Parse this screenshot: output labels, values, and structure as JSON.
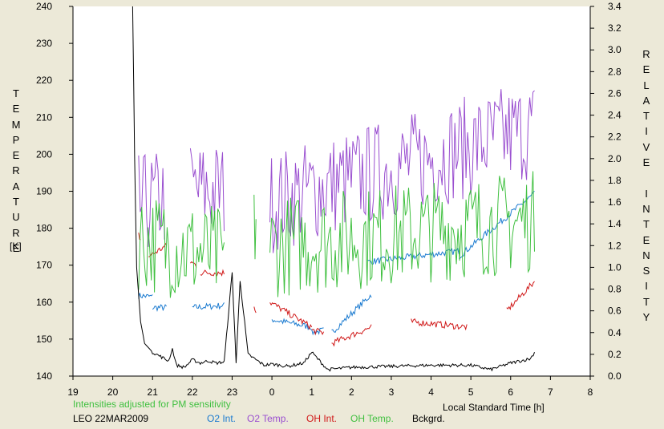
{
  "chart_data": {
    "type": "line",
    "y_left_label": "TEMPERATURE",
    "y_left_unit": "[K]",
    "y_right_label": "RELATIVE INTENSITY",
    "x_label": "Local Standard Time [h]",
    "x_ticks": [
      "19",
      "20",
      "21",
      "22",
      "23",
      "0",
      "1",
      "2",
      "3",
      "4",
      "5",
      "6",
      "7",
      "8"
    ],
    "y_left_ticks": [
      "140",
      "150",
      "160",
      "170",
      "180",
      "190",
      "200",
      "210",
      "220",
      "230",
      "240"
    ],
    "y_right_ticks": [
      "0.0",
      "0.2",
      "0.4",
      "0.6",
      "0.8",
      "1.0",
      "1.2",
      "1.4",
      "1.6",
      "1.8",
      "2.0",
      "2.2",
      "2.4",
      "2.6",
      "2.8",
      "3.0",
      "3.2",
      "3.4"
    ],
    "xlim": [
      19,
      32
    ],
    "ylim_left": [
      140,
      240
    ],
    "ylim_right": [
      0,
      3.4
    ],
    "note": "Intensities adjusted for PM sensitivity",
    "station": "LEO 22MAR2009",
    "legend_position": "bottom",
    "series": [
      {
        "name": "O2 Int.",
        "color": "#1a7ad0",
        "axis": "right",
        "segments": [
          {
            "x": [
              20.65,
              21.0
            ],
            "y": [
              0.74,
              0.73
            ]
          },
          {
            "x": [
              21.0,
              21.35
            ],
            "y": [
              0.63,
              0.63
            ]
          },
          {
            "x": [
              22.0,
              22.8
            ],
            "y": [
              0.63,
              0.65
            ]
          },
          {
            "x": [
              24.0,
              25.0
            ],
            "y": [
              0.52,
              0.45
            ]
          },
          {
            "x": [
              25.0,
              25.3
            ],
            "y": [
              0.4,
              0.42
            ]
          },
          {
            "x": [
              25.5,
              26.5
            ],
            "y": [
              0.4,
              0.75
            ]
          },
          {
            "x": [
              26.4,
              28.7
            ],
            "y": [
              1.05,
              1.15
            ]
          },
          {
            "x": [
              28.7,
              30.6
            ],
            "y": [
              1.1,
              1.68
            ]
          }
        ]
      },
      {
        "name": "O2 Temp.",
        "color": "#9a4fd0",
        "axis": "left",
        "segments": [
          {
            "x": [
              20.65,
              21.3
            ],
            "y": [
              186,
              188
            ]
          },
          {
            "x": [
              21.95,
              22.8
            ],
            "y": [
              190,
              190
            ]
          },
          {
            "x": [
              23.95,
              30.6
            ],
            "y": [
              187,
              207
            ]
          }
        ]
      },
      {
        "name": "OH Int.",
        "color": "#d01818",
        "axis": "right",
        "segments": [
          {
            "x": [
              20.65,
              20.7
            ],
            "y": [
              1.3,
              1.25
            ]
          },
          {
            "x": [
              20.9,
              21.35
            ],
            "y": [
              1.1,
              1.2
            ]
          },
          {
            "x": [
              21.95,
              22.1
            ],
            "y": [
              1.05,
              1.02
            ]
          },
          {
            "x": [
              22.2,
              22.8
            ],
            "y": [
              0.95,
              0.95
            ]
          },
          {
            "x": [
              23.55,
              23.6
            ],
            "y": [
              0.65,
              0.6
            ]
          },
          {
            "x": [
              23.95,
              25.0
            ],
            "y": [
              0.68,
              0.45
            ]
          },
          {
            "x": [
              25.0,
              25.3
            ],
            "y": [
              0.42,
              0.4
            ]
          },
          {
            "x": [
              25.5,
              26.5
            ],
            "y": [
              0.3,
              0.45
            ]
          },
          {
            "x": [
              27.5,
              28.9
            ],
            "y": [
              0.5,
              0.45
            ]
          },
          {
            "x": [
              29.9,
              30.6
            ],
            "y": [
              0.6,
              0.87
            ]
          }
        ]
      },
      {
        "name": "OH Temp.",
        "color": "#40c040",
        "axis": "left",
        "segments": [
          {
            "x": [
              20.65,
              22.8
            ],
            "y": [
              177,
              172
            ]
          },
          {
            "x": [
              23.55,
              23.6
            ],
            "y": [
              178,
              183
            ]
          },
          {
            "x": [
              23.95,
              30.6
            ],
            "y": [
              175,
              182
            ]
          }
        ]
      },
      {
        "name": "Bckgrd.",
        "color": "#000000",
        "axis": "right",
        "x": [
          20.5,
          20.55,
          20.6,
          20.7,
          20.8,
          21.0,
          21.2,
          21.4,
          21.5,
          21.6,
          21.8,
          22.0,
          22.2,
          22.4,
          22.6,
          22.8,
          23.0,
          23.1,
          23.2,
          23.4,
          23.6,
          23.8,
          24.0,
          24.4,
          24.8,
          25.0,
          25.4,
          26.0,
          27.0,
          28.0,
          29.0,
          29.5,
          30.0,
          30.5,
          30.6
        ],
        "y": [
          3.4,
          2.0,
          1.0,
          0.5,
          0.3,
          0.22,
          0.18,
          0.14,
          0.25,
          0.1,
          0.08,
          0.15,
          0.12,
          0.14,
          0.12,
          0.13,
          0.95,
          0.12,
          0.88,
          0.2,
          0.15,
          0.1,
          0.11,
          0.09,
          0.12,
          0.22,
          0.06,
          0.08,
          0.09,
          0.1,
          0.1,
          0.06,
          0.12,
          0.16,
          0.22
        ]
      }
    ]
  }
}
